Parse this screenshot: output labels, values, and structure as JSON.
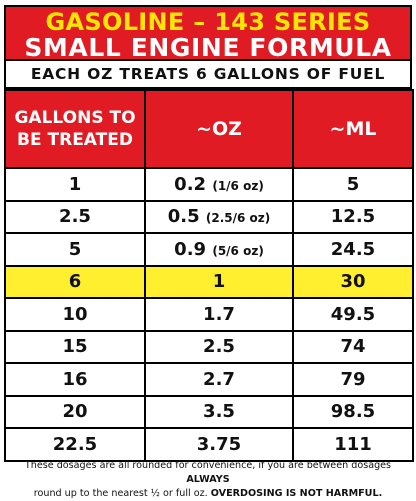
{
  "title_line1": "GASOLINE – 143 SERIES",
  "title_line2": "SMALL ENGINE FORMULA",
  "subtitle": "EACH OZ TREATS 6 GALLONS OF FUEL",
  "headers": {
    "gallons_line1": "GALLONS TO",
    "gallons_line2": "BE TREATED",
    "oz": "~OZ",
    "ml": "~ML"
  },
  "rows": [
    {
      "gallons": "1",
      "oz": "0.2",
      "oz_note": "(1/6 oz)",
      "ml": "5"
    },
    {
      "gallons": "2.5",
      "oz": "0.5",
      "oz_note": "(2.5/6 oz)",
      "ml": "12.5"
    },
    {
      "gallons": "5",
      "oz": "0.9",
      "oz_note": "(5/6 oz)",
      "ml": "24.5"
    },
    {
      "gallons": "6",
      "oz": "1",
      "oz_note": "",
      "ml": "30"
    },
    {
      "gallons": "10",
      "oz": "1.7",
      "oz_note": "",
      "ml": "49.5"
    },
    {
      "gallons": "15",
      "oz": "2.5",
      "oz_note": "",
      "ml": "74"
    },
    {
      "gallons": "16",
      "oz": "2.7",
      "oz_note": "",
      "ml": "79"
    },
    {
      "gallons": "20",
      "oz": "3.5",
      "oz_note": "",
      "ml": "98.5"
    },
    {
      "gallons": "22.5",
      "oz": "3.75",
      "oz_note": "",
      "ml": "111"
    }
  ],
  "footnote": {
    "part1": "These dosages are all rounded for convenience, if you are between dosages",
    "always": "ALWAYS",
    "part2": "round up to the nearest ½ or full oz.",
    "warning": "OVERDOSING IS NOT HARMFUL."
  },
  "colors": {
    "red": "#e01b24",
    "yellow_text": "#ffe600",
    "highlight": "#ffef2f"
  }
}
